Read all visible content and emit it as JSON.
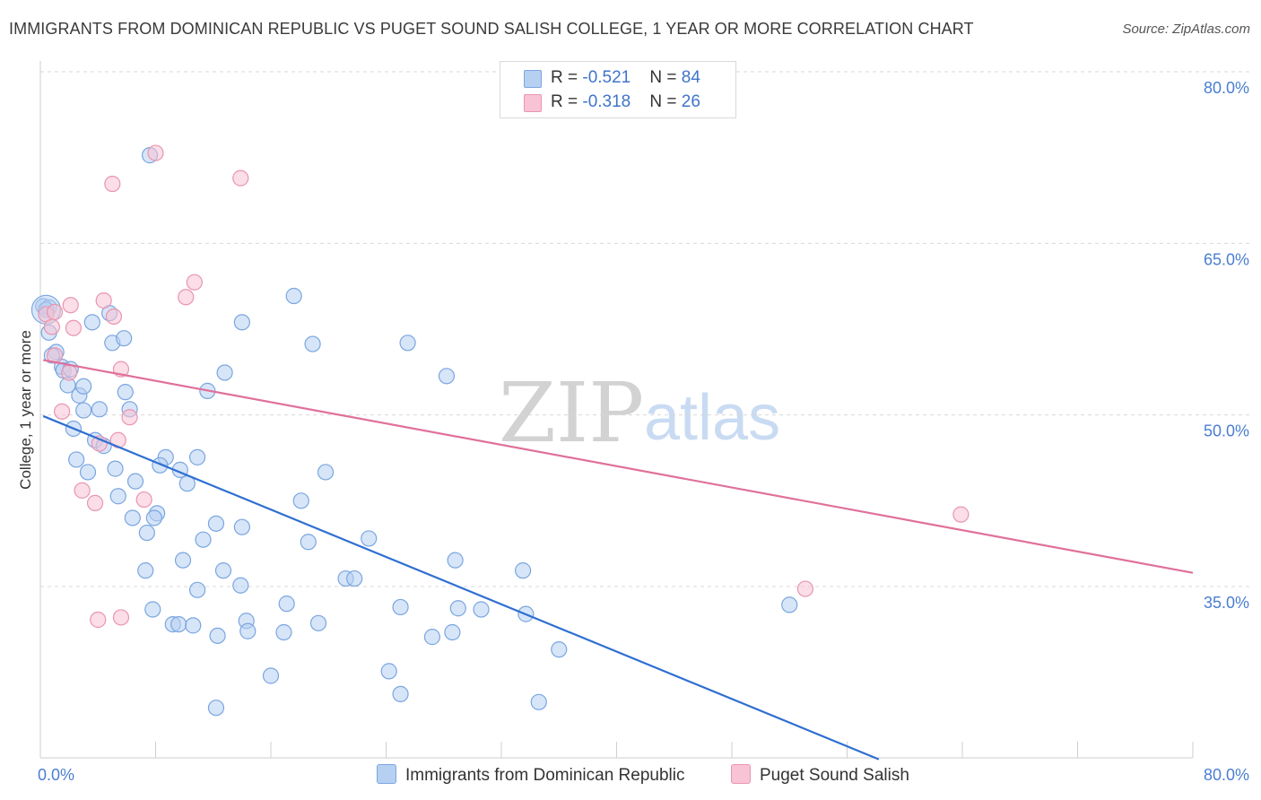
{
  "header": {
    "title": "IMMIGRANTS FROM DOMINICAN REPUBLIC VS PUGET SOUND SALISH COLLEGE, 1 YEAR OR MORE CORRELATION CHART",
    "source": "Source: ZipAtlas.com"
  },
  "watermark": {
    "zip": "ZIP",
    "atlas": "atlas"
  },
  "legend": {
    "rows": [
      {
        "r_label": "R = ",
        "r_value": "-0.521",
        "n_label": "N = ",
        "n_value": "84"
      },
      {
        "r_label": "R = ",
        "r_value": "-0.318",
        "n_label": "N = ",
        "n_value": "26"
      }
    ]
  },
  "bottom_legend": {
    "series1": "Immigrants from Dominican Republic",
    "series2": "Puget Sound Salish"
  },
  "chart_data": {
    "type": "scatter",
    "title": "IMMIGRANTS FROM DOMINICAN REPUBLIC VS PUGET SOUND SALISH COLLEGE, 1 YEAR OR MORE CORRELATION CHART",
    "xlabel": "",
    "ylabel": "College, 1 year or more",
    "xlim": [
      0,
      80
    ],
    "ylim": [
      20,
      82
    ],
    "x_tick_labels": [
      "0.0%",
      "80.0%"
    ],
    "y_ticks": [
      35,
      50,
      65,
      80
    ],
    "y_tick_labels": [
      "35.0%",
      "50.0%",
      "65.0%",
      "80.0%"
    ],
    "grid": true,
    "colors": {
      "series1_fill": "#b6d0f2",
      "series1_stroke": "#7aa6e0",
      "series1_line": "#2f6fd1",
      "series2_fill": "#f8c3d4",
      "series2_stroke": "#e995b0",
      "series2_line": "#e0709a",
      "tick": "#4a7ed0"
    },
    "series": [
      {
        "name": "Immigrants from Dominican Republic",
        "r": -0.521,
        "n": 84,
        "trend": {
          "x": [
            0.2,
            58.2
          ],
          "y": [
            49.9,
            19.9
          ]
        },
        "points": [
          [
            0.2,
            59.5
          ],
          [
            0.6,
            57.2
          ],
          [
            1.1,
            55.5
          ],
          [
            0.8,
            55.2
          ],
          [
            1.5,
            54.2
          ],
          [
            1.9,
            52.6
          ],
          [
            2.7,
            51.7
          ],
          [
            3.0,
            50.4
          ],
          [
            4.1,
            50.5
          ],
          [
            2.3,
            48.8
          ],
          [
            3.8,
            47.8
          ],
          [
            4.4,
            47.3
          ],
          [
            2.5,
            46.1
          ],
          [
            3.3,
            45.0
          ],
          [
            5.2,
            45.3
          ],
          [
            6.6,
            44.2
          ],
          [
            5.4,
            42.9
          ],
          [
            6.4,
            41.0
          ],
          [
            7.4,
            39.7
          ],
          [
            8.1,
            41.4
          ],
          [
            7.9,
            41.0
          ],
          [
            8.7,
            46.3
          ],
          [
            8.3,
            45.6
          ],
          [
            9.7,
            45.2
          ],
          [
            10.2,
            44.0
          ],
          [
            10.9,
            46.3
          ],
          [
            11.3,
            39.1
          ],
          [
            12.2,
            40.5
          ],
          [
            12.7,
            36.4
          ],
          [
            14.0,
            40.2
          ],
          [
            9.9,
            37.3
          ],
          [
            7.3,
            36.4
          ],
          [
            10.9,
            34.7
          ],
          [
            13.9,
            35.1
          ],
          [
            7.8,
            33.0
          ],
          [
            9.2,
            31.7
          ],
          [
            9.6,
            31.7
          ],
          [
            10.6,
            31.6
          ],
          [
            12.3,
            30.7
          ],
          [
            14.3,
            32.0
          ],
          [
            14.4,
            31.1
          ],
          [
            16.9,
            31.0
          ],
          [
            17.1,
            33.5
          ],
          [
            18.1,
            42.5
          ],
          [
            18.6,
            38.9
          ],
          [
            19.8,
            45.0
          ],
          [
            22.8,
            39.2
          ],
          [
            21.2,
            35.7
          ],
          [
            21.8,
            35.7
          ],
          [
            19.3,
            31.8
          ],
          [
            16.0,
            27.2
          ],
          [
            12.2,
            24.4
          ],
          [
            25.0,
            33.2
          ],
          [
            24.2,
            27.6
          ],
          [
            25.0,
            25.6
          ],
          [
            27.2,
            30.6
          ],
          [
            28.6,
            31.0
          ],
          [
            28.8,
            37.3
          ],
          [
            29.0,
            33.1
          ],
          [
            30.6,
            33.0
          ],
          [
            33.5,
            36.4
          ],
          [
            33.7,
            32.6
          ],
          [
            34.6,
            24.9
          ],
          [
            36.0,
            29.5
          ],
          [
            52.0,
            33.4
          ],
          [
            12.8,
            53.7
          ],
          [
            11.6,
            52.1
          ],
          [
            14.0,
            58.1
          ],
          [
            17.6,
            60.4
          ],
          [
            18.9,
            56.2
          ],
          [
            25.5,
            56.3
          ],
          [
            28.2,
            53.4
          ],
          [
            5.0,
            56.3
          ],
          [
            5.8,
            56.7
          ],
          [
            4.8,
            58.9
          ],
          [
            3.6,
            58.1
          ],
          [
            5.9,
            52.0
          ],
          [
            6.2,
            50.5
          ],
          [
            7.6,
            72.7
          ],
          [
            3.0,
            52.5
          ],
          [
            1.6,
            53.9
          ],
          [
            0.6,
            59.4
          ],
          [
            0.4,
            59.2
          ],
          [
            2.1,
            54.0
          ]
        ]
      },
      {
        "name": "Puget Sound Salish",
        "r": -0.318,
        "n": 26,
        "trend": {
          "x": [
            0.2,
            80.0
          ],
          "y": [
            54.8,
            36.2
          ]
        },
        "points": [
          [
            0.4,
            58.8
          ],
          [
            0.8,
            57.7
          ],
          [
            1.0,
            55.2
          ],
          [
            2.0,
            53.7
          ],
          [
            1.5,
            50.3
          ],
          [
            2.1,
            59.6
          ],
          [
            2.3,
            57.6
          ],
          [
            4.4,
            60.0
          ],
          [
            5.1,
            58.6
          ],
          [
            5.6,
            54.0
          ],
          [
            4.1,
            47.5
          ],
          [
            5.4,
            47.8
          ],
          [
            6.2,
            49.8
          ],
          [
            2.9,
            43.4
          ],
          [
            3.8,
            42.3
          ],
          [
            7.2,
            42.6
          ],
          [
            4.0,
            32.1
          ],
          [
            5.6,
            32.3
          ],
          [
            8.0,
            72.9
          ],
          [
            5.0,
            70.2
          ],
          [
            13.9,
            70.7
          ],
          [
            10.1,
            60.3
          ],
          [
            10.7,
            61.6
          ],
          [
            63.9,
            41.3
          ],
          [
            53.1,
            34.8
          ],
          [
            1.0,
            59.0
          ]
        ]
      }
    ]
  }
}
